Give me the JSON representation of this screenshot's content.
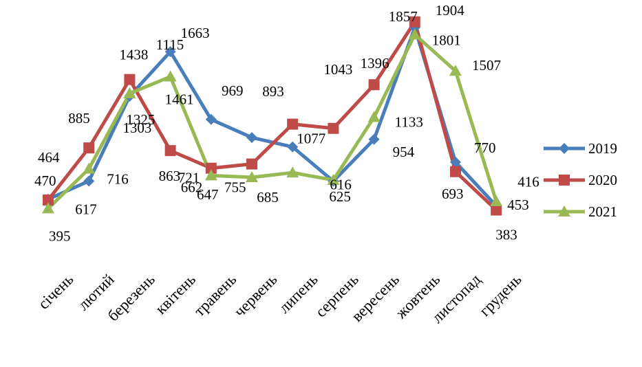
{
  "chart_data": {
    "type": "line",
    "title": "",
    "xlabel": "",
    "ylabel": "",
    "categories": [
      "січень",
      "лютий",
      "березень",
      "квітень",
      "травень",
      "червень",
      "липень",
      "серпень",
      "вересень",
      "жовтень",
      "листопад",
      "грудень"
    ],
    "ylim": [
      0,
      2000
    ],
    "grid": false,
    "legend_position": "right",
    "series": [
      {
        "name": "2019",
        "color": "#4a7ebb",
        "marker": "diamond",
        "values": [
          470,
          617,
          1303,
          1663,
          1115,
          969,
          893,
          616,
          954,
          1857,
          770,
          416
        ]
      },
      {
        "name": "2020",
        "color": "#be4b48",
        "marker": "square",
        "values": [
          464,
          885,
          1438,
          863,
          721,
          755,
          1077,
          1043,
          1396,
          1904,
          693,
          383
        ]
      },
      {
        "name": "2021",
        "color": "#98b954",
        "marker": "triangle",
        "values": [
          395,
          716,
          1325,
          1461,
          662,
          647,
          685,
          625,
          1133,
          1801,
          1507,
          453
        ]
      }
    ]
  }
}
